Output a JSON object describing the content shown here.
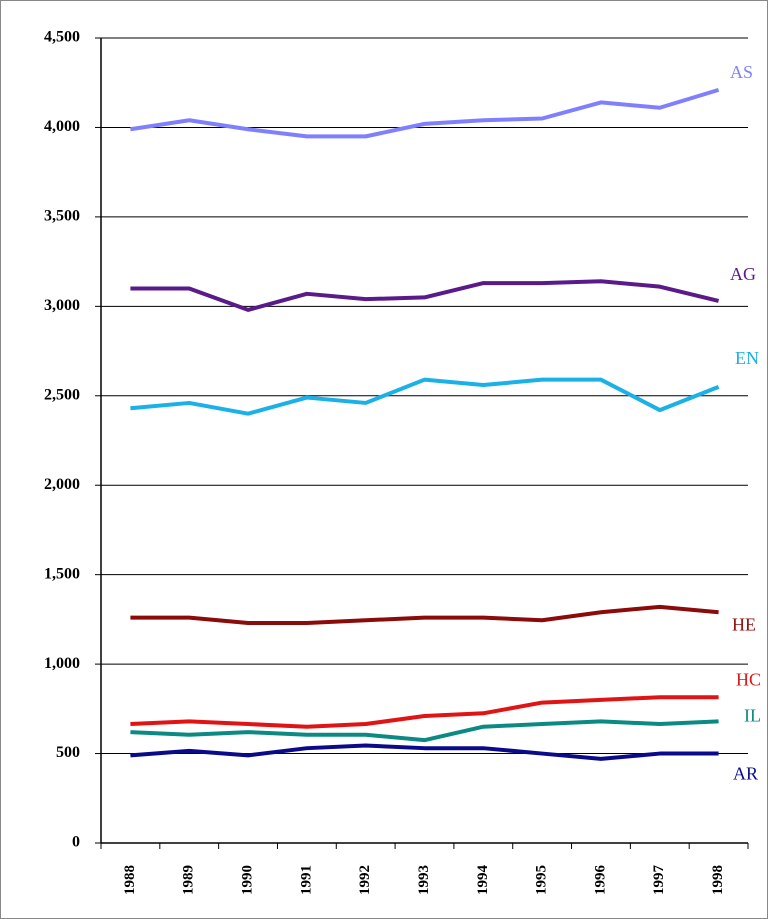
{
  "chart_data": {
    "type": "line",
    "categories": [
      "1988",
      "1989",
      "1990",
      "1991",
      "1992",
      "1993",
      "1994",
      "1995",
      "1996",
      "1997",
      "1998"
    ],
    "series": [
      {
        "name": "AS",
        "color": "#8080ff",
        "values": [
          3990,
          4040,
          3990,
          3950,
          3950,
          4020,
          4040,
          4050,
          4140,
          4110,
          4210
        ]
      },
      {
        "name": "AG",
        "color": "#5a1a8a",
        "values": [
          3100,
          3100,
          2980,
          3070,
          3040,
          3050,
          3130,
          3130,
          3140,
          3110,
          3030
        ]
      },
      {
        "name": "EN",
        "color": "#1ab0e8",
        "values": [
          2430,
          2460,
          2400,
          2490,
          2460,
          2590,
          2560,
          2590,
          2590,
          2420,
          2550
        ]
      },
      {
        "name": "HE",
        "color": "#8b0a0a",
        "values": [
          1260,
          1260,
          1230,
          1230,
          1245,
          1260,
          1260,
          1245,
          1290,
          1320,
          1290
        ]
      },
      {
        "name": "HC",
        "color": "#e01414",
        "values": [
          665,
          680,
          665,
          650,
          665,
          710,
          725,
          785,
          800,
          815,
          815
        ]
      },
      {
        "name": "IL",
        "color": "#0a8a82",
        "values": [
          620,
          605,
          620,
          605,
          605,
          575,
          650,
          665,
          680,
          665,
          680
        ]
      },
      {
        "name": "AR",
        "color": "#0a0a8a",
        "values": [
          490,
          515,
          490,
          530,
          545,
          530,
          530,
          500,
          470,
          500,
          500
        ]
      }
    ],
    "ylim": [
      0,
      4500
    ],
    "yticks": [
      0,
      500,
      {
        "value": 1000,
        "label": "1,000"
      },
      {
        "value": 1500,
        "label": "1,500"
      },
      {
        "value": 2000,
        "label": "2,000"
      },
      {
        "value": 2500,
        "label": "2,500"
      },
      {
        "value": 3000,
        "label": "3,000"
      },
      {
        "value": 3500,
        "label": "3,500"
      },
      {
        "value": 4000,
        "label": "4,000"
      },
      {
        "value": 4500,
        "label": "4,500"
      }
    ],
    "grid": true
  }
}
